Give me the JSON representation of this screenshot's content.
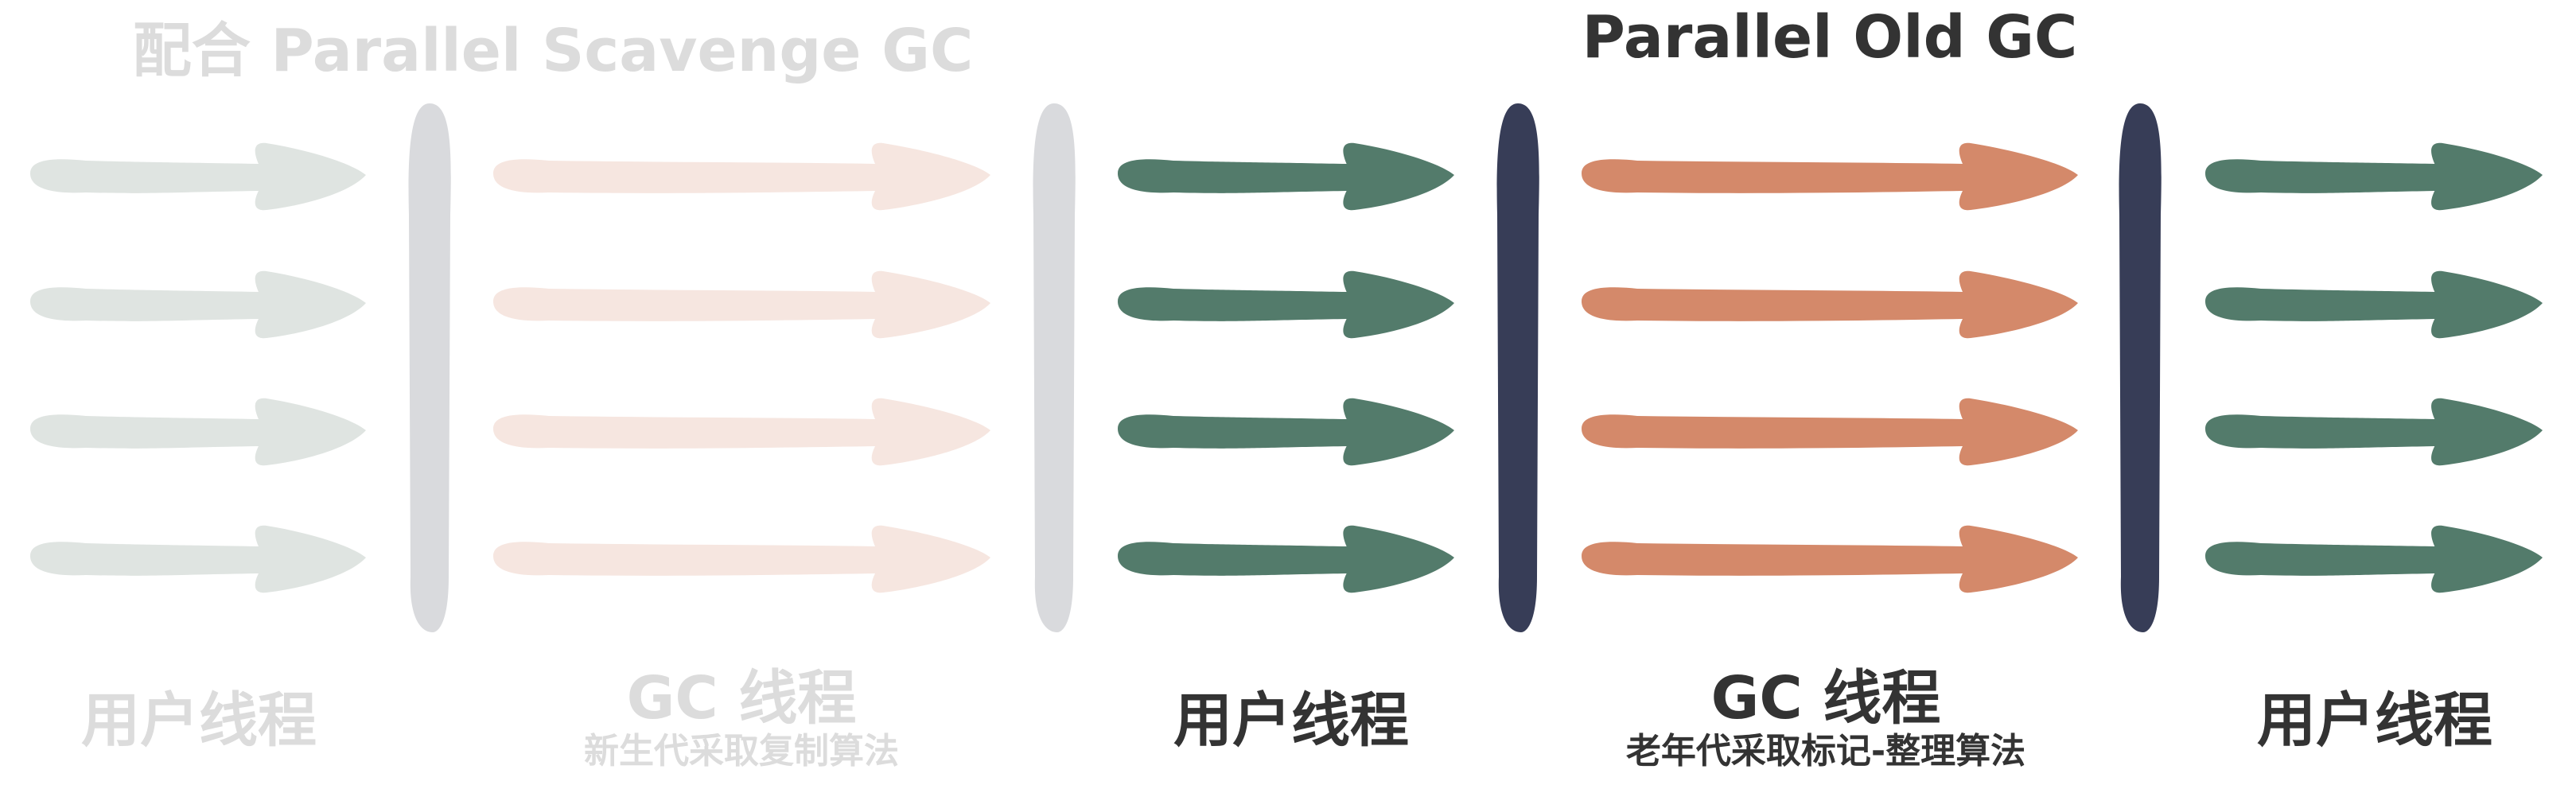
{
  "titles": {
    "left": "配合 Parallel Scavenge GC",
    "right": "Parallel Old GC"
  },
  "lanes": [
    {
      "name": "用户线程",
      "subtitle": "",
      "color": "#dfe4e1",
      "faded": true
    },
    {
      "name": "GC 线程",
      "subtitle": "新生代采取复制算法",
      "color": "#f6e6e0",
      "faded": true
    },
    {
      "name": "用户线程",
      "subtitle": "",
      "color": "#537b6b",
      "faded": false
    },
    {
      "name": "GC 线程",
      "subtitle": "老年代采取标记-整理算法",
      "color": "#d4896a",
      "faded": false
    },
    {
      "name": "用户线程",
      "subtitle": "",
      "color": "#537b6b",
      "faded": false
    }
  ],
  "barriers": [
    {
      "color": "#d9dadd"
    },
    {
      "color": "#d9dadd"
    },
    {
      "color": "#373d57"
    },
    {
      "color": "#373d57"
    }
  ],
  "colors": {
    "faded_text": "#dcdcdc",
    "text": "#333333"
  }
}
